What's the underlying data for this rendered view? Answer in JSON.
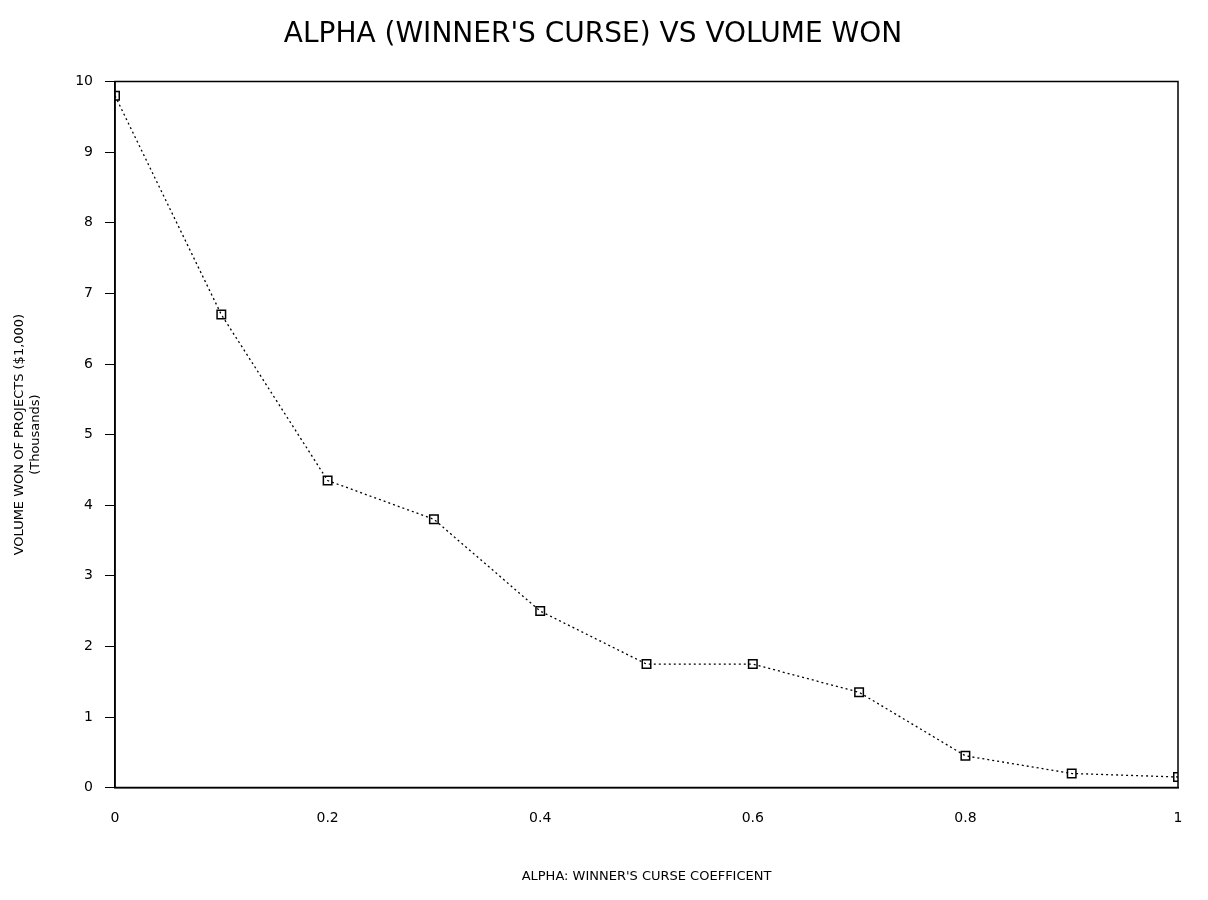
{
  "chart_data": {
    "type": "line",
    "title": "ALPHA (WINNER'S CURSE) VS VOLUME WON",
    "xlabel": "ALPHA: WINNER'S CURSE COEFFICENT",
    "ylabel": "VOLUME WON OF PROJECTS ($1,000)\n(Thousands)",
    "x": [
      0,
      0.1,
      0.2,
      0.3,
      0.4,
      0.5,
      0.6,
      0.7,
      0.8,
      0.9,
      1
    ],
    "series": [
      {
        "color": "#000000",
        "values": [
          9.8,
          6.7,
          4.35,
          3.8,
          2.5,
          1.75,
          1.75,
          1.35,
          0.45,
          0.2,
          0.15
        ]
      }
    ],
    "xlim": [
      0,
      1
    ],
    "xticks": [
      0,
      0.2,
      0.4,
      0.6,
      0.8,
      1
    ],
    "ylim": [
      0,
      10
    ],
    "yticks": [
      0,
      1,
      2,
      3,
      4,
      5,
      6,
      7,
      8,
      9,
      10
    ],
    "grid": false,
    "legend": false,
    "marker": "square",
    "line_style": "dotted"
  }
}
